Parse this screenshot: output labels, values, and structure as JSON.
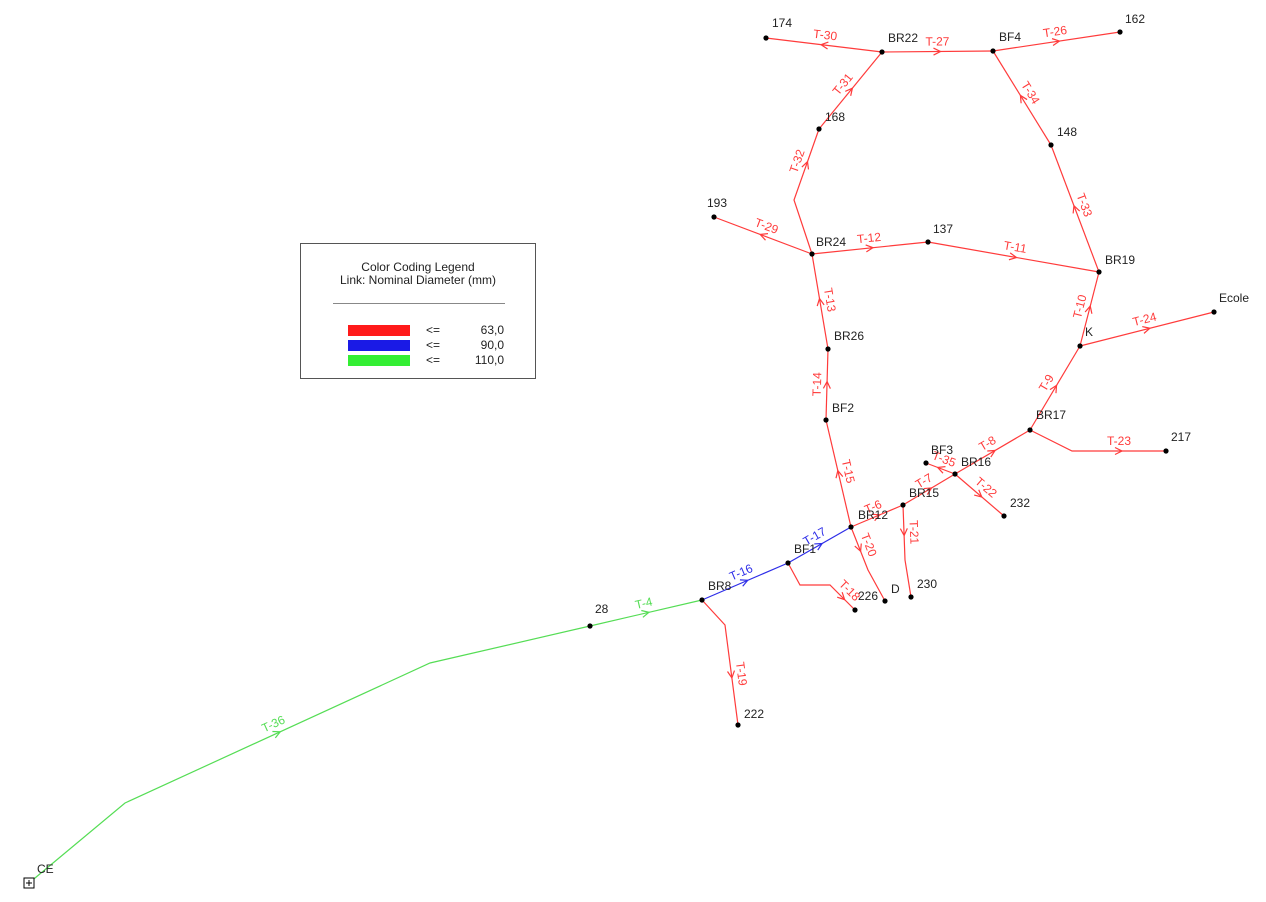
{
  "colors": {
    "red": "#ff3b3b",
    "blue": "#2e2ee8",
    "green": "#55dd55",
    "node": "#000000"
  },
  "legend": {
    "title_line1": "Color Coding Legend",
    "title_line2": "Link: Nominal Diameter (mm)",
    "items": [
      {
        "cmp": "<=",
        "value": "63,0",
        "color": "#ff1a1a"
      },
      {
        "cmp": "<=",
        "value": "90,0",
        "color": "#1a1ae6"
      },
      {
        "cmp": "<=",
        "value": "110,0",
        "color": "#33ee33"
      }
    ]
  },
  "nodes": [
    {
      "id": "CE",
      "label": "CE",
      "reservoir": true
    },
    {
      "id": "28",
      "label": "28"
    },
    {
      "id": "BR8",
      "label": "BR8"
    },
    {
      "id": "BF1",
      "label": "BF1"
    },
    {
      "id": "BR12",
      "label": "BR12"
    },
    {
      "id": "BR15",
      "label": "BR15"
    },
    {
      "id": "BR16",
      "label": "BR16"
    },
    {
      "id": "BF3",
      "label": "BF3"
    },
    {
      "id": "BR17",
      "label": "BR17"
    },
    {
      "id": "K",
      "label": "K"
    },
    {
      "id": "Ecole",
      "label": "Ecole"
    },
    {
      "id": "217",
      "label": "217"
    },
    {
      "id": "232",
      "label": "232"
    },
    {
      "id": "230",
      "label": "230"
    },
    {
      "id": "D",
      "label": "D"
    },
    {
      "id": "226",
      "label": "226"
    },
    {
      "id": "222",
      "label": "222"
    },
    {
      "id": "BF2",
      "label": "BF2"
    },
    {
      "id": "BR26",
      "label": "BR26"
    },
    {
      "id": "BR24",
      "label": "BR24"
    },
    {
      "id": "193",
      "label": "193"
    },
    {
      "id": "137",
      "label": "137"
    },
    {
      "id": "BR19",
      "label": "BR19"
    },
    {
      "id": "148",
      "label": "148"
    },
    {
      "id": "BF4",
      "label": "BF4"
    },
    {
      "id": "162",
      "label": "162"
    },
    {
      "id": "BR22",
      "label": "BR22"
    },
    {
      "id": "174",
      "label": "174"
    },
    {
      "id": "168",
      "label": "168"
    }
  ],
  "links": [
    {
      "id": "T-36",
      "label": "T-36",
      "from": "CE",
      "to": "28",
      "color": "green"
    },
    {
      "id": "T-4",
      "label": "T-4",
      "from": "28",
      "to": "BR8",
      "color": "green"
    },
    {
      "id": "T-16",
      "label": "T-16",
      "from": "BR8",
      "to": "BF1",
      "color": "blue"
    },
    {
      "id": "T-17",
      "label": "T-17",
      "from": "BF1",
      "to": "BR12",
      "color": "blue"
    },
    {
      "id": "T-19",
      "label": "T-19",
      "from": "BR8",
      "to": "222",
      "color": "red"
    },
    {
      "id": "T-18",
      "label": "T-18",
      "from": "BF1",
      "to": "226",
      "color": "red"
    },
    {
      "id": "T-20",
      "label": "T-20",
      "from": "BR12",
      "to": "D",
      "color": "red"
    },
    {
      "id": "T-6",
      "label": "T-6",
      "from": "BR12",
      "to": "BR15",
      "color": "red"
    },
    {
      "id": "T-21",
      "label": "T-21",
      "from": "BR15",
      "to": "230",
      "color": "red"
    },
    {
      "id": "T-7",
      "label": "T-7",
      "from": "BR15",
      "to": "BR16",
      "color": "red"
    },
    {
      "id": "T-35",
      "label": "T-35",
      "from": "BR16",
      "to": "BF3",
      "color": "red"
    },
    {
      "id": "T-22",
      "label": "T-22",
      "from": "BR16",
      "to": "232",
      "color": "red"
    },
    {
      "id": "T-8",
      "label": "T-8",
      "from": "BR16",
      "to": "BR17",
      "color": "red"
    },
    {
      "id": "T-23",
      "label": "T-23",
      "from": "BR17",
      "to": "217",
      "color": "red"
    },
    {
      "id": "T-9",
      "label": "T-9",
      "from": "BR17",
      "to": "K",
      "color": "red"
    },
    {
      "id": "T-24",
      "label": "T-24",
      "from": "K",
      "to": "Ecole",
      "color": "red"
    },
    {
      "id": "T-10",
      "label": "T-10",
      "from": "K",
      "to": "BR19",
      "color": "red"
    },
    {
      "id": "T-11",
      "label": "T-11",
      "from": "137",
      "to": "BR19",
      "color": "red"
    },
    {
      "id": "T-33",
      "label": "T-33",
      "from": "BR19",
      "to": "148",
      "color": "red"
    },
    {
      "id": "T-34",
      "label": "T-34",
      "from": "148",
      "to": "BF4",
      "color": "red"
    },
    {
      "id": "T-26",
      "label": "T-26",
      "from": "BF4",
      "to": "162",
      "color": "red"
    },
    {
      "id": "T-27",
      "label": "T-27",
      "from": "BR22",
      "to": "BF4",
      "color": "red"
    },
    {
      "id": "T-30",
      "label": "T-30",
      "from": "BR22",
      "to": "174",
      "color": "red"
    },
    {
      "id": "T-31",
      "label": "T-31",
      "from": "168",
      "to": "BR22",
      "color": "red"
    },
    {
      "id": "T-32",
      "label": "T-32",
      "from": "BR24",
      "to": "168",
      "color": "red"
    },
    {
      "id": "T-29",
      "label": "T-29",
      "from": "BR24",
      "to": "193",
      "color": "red"
    },
    {
      "id": "T-12",
      "label": "T-12",
      "from": "BR24",
      "to": "137",
      "color": "red"
    },
    {
      "id": "T-13",
      "label": "T-13",
      "from": "BR26",
      "to": "BR24",
      "color": "red"
    },
    {
      "id": "T-14",
      "label": "T-14",
      "from": "BF2",
      "to": "BR26",
      "color": "red"
    },
    {
      "id": "T-15",
      "label": "T-15",
      "from": "BR12",
      "to": "BF2",
      "color": "red"
    }
  ]
}
